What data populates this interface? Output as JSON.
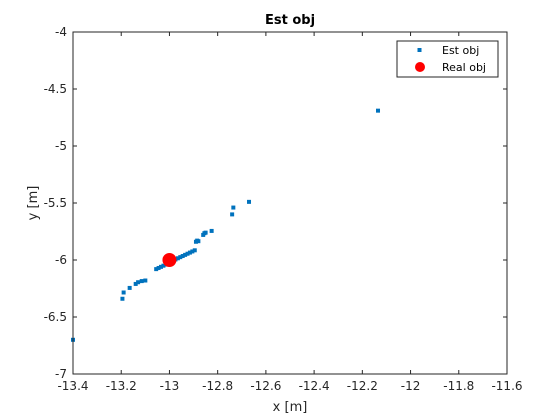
{
  "chart_data": {
    "type": "scatter",
    "title": "Est obj",
    "xlabel": "x [m]",
    "ylabel": "y [m]",
    "xlim": [
      -13.4,
      -11.6
    ],
    "ylim": [
      -7,
      -4
    ],
    "xticks": [
      "-13.4",
      "-13.2",
      "-13",
      "-12.8",
      "-12.6",
      "-12.4",
      "-12.2",
      "-12",
      "-11.8",
      "-11.6"
    ],
    "yticks": [
      "-7",
      "-6.5",
      "-6",
      "-5.5",
      "-5",
      "-4.5",
      "-4"
    ],
    "grid": false,
    "legend_position": "top-right",
    "series": [
      {
        "name": "Est obj",
        "color": "#0072BD",
        "marker": "square",
        "points": [
          [
            -13.4,
            -6.7
          ],
          [
            -13.195,
            -6.34
          ],
          [
            -13.19,
            -6.285
          ],
          [
            -13.165,
            -6.245
          ],
          [
            -13.14,
            -6.21
          ],
          [
            -13.13,
            -6.195
          ],
          [
            -13.115,
            -6.185
          ],
          [
            -13.1,
            -6.18
          ],
          [
            -13.055,
            -6.08
          ],
          [
            -13.045,
            -6.07
          ],
          [
            -13.035,
            -6.06
          ],
          [
            -13.025,
            -6.05
          ],
          [
            -13.015,
            -6.04
          ],
          [
            -13.005,
            -6.03
          ],
          [
            -12.995,
            -6.02
          ],
          [
            -12.985,
            -6.01
          ],
          [
            -12.975,
            -5.995
          ],
          [
            -12.965,
            -5.985
          ],
          [
            -12.955,
            -5.975
          ],
          [
            -12.945,
            -5.965
          ],
          [
            -12.935,
            -5.955
          ],
          [
            -12.925,
            -5.945
          ],
          [
            -12.915,
            -5.935
          ],
          [
            -12.905,
            -5.925
          ],
          [
            -12.895,
            -5.915
          ],
          [
            -12.89,
            -5.84
          ],
          [
            -12.885,
            -5.83
          ],
          [
            -12.88,
            -5.835
          ],
          [
            -12.86,
            -5.78
          ],
          [
            -12.855,
            -5.765
          ],
          [
            -12.85,
            -5.76
          ],
          [
            -12.825,
            -5.745
          ],
          [
            -12.74,
            -5.6
          ],
          [
            -12.735,
            -5.54
          ],
          [
            -12.67,
            -5.49
          ],
          [
            -12.135,
            -4.69
          ]
        ]
      },
      {
        "name": "Real obj",
        "color": "#FF0000",
        "marker": "circle",
        "points": [
          [
            -13.0,
            -6.0
          ]
        ]
      }
    ]
  }
}
